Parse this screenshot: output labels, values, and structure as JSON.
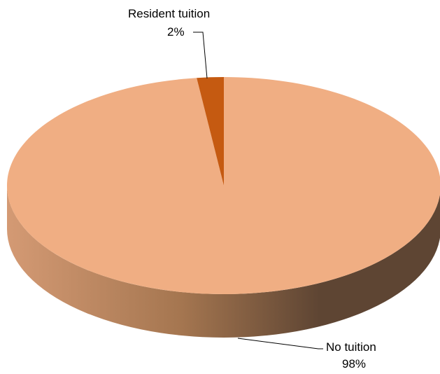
{
  "chart_data": {
    "type": "pie",
    "title": "",
    "style": "3d",
    "slices": [
      {
        "name": "Resident tuition",
        "value": 2,
        "percent_label": "2%",
        "color": "#C55A11"
      },
      {
        "name": "No tuition",
        "value": 98,
        "percent_label": "98%",
        "color": "#F0AE83"
      }
    ],
    "side_colors": {
      "light": "#D49A74",
      "mid": "#A57650",
      "dark": "#5E4533"
    },
    "legend": "none"
  }
}
